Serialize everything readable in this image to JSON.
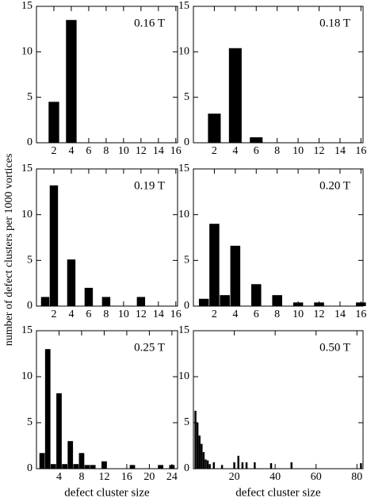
{
  "ylabel": "number of defect clusters per 1000 vortices",
  "chart_data": [
    {
      "type": "bar",
      "title": "0.16 T",
      "x": [
        2,
        4
      ],
      "values": [
        4.5,
        13.5
      ],
      "color": "#000000",
      "xlim": [
        0,
        16.2
      ],
      "xticks": [
        2,
        4,
        6,
        8,
        10,
        12,
        14,
        16
      ],
      "ylim": [
        0,
        15
      ],
      "yticks": [
        0,
        5,
        10,
        15
      ]
    },
    {
      "type": "bar",
      "title": "0.18 T",
      "x": [
        2,
        4,
        6
      ],
      "values": [
        3.2,
        10.4,
        0.6
      ],
      "color": "#000000",
      "xlim": [
        0,
        16.2
      ],
      "xticks": [
        2,
        4,
        6,
        8,
        10,
        12,
        14,
        16
      ],
      "ylim": [
        0,
        15
      ],
      "yticks": [
        0,
        5,
        10,
        15
      ]
    },
    {
      "type": "bar",
      "title": "0.19 T",
      "x": [
        1,
        2,
        4,
        6,
        8,
        12
      ],
      "values": [
        1,
        13.2,
        5.1,
        2,
        1,
        1
      ],
      "color": "#000000",
      "xlim": [
        0,
        16.2
      ],
      "xticks": [
        2,
        4,
        6,
        8,
        10,
        12,
        14,
        16
      ],
      "ylim": [
        0,
        15
      ],
      "yticks": [
        0,
        5,
        10,
        15
      ]
    },
    {
      "type": "bar",
      "title": "0.20 T",
      "x": [
        1,
        2,
        3,
        4,
        6,
        8,
        10,
        12,
        16
      ],
      "values": [
        0.8,
        9,
        1.2,
        6.6,
        2.4,
        1.2,
        0.4,
        0.4,
        0.4
      ],
      "color": "#000000",
      "xlim": [
        0,
        16.2
      ],
      "xticks": [
        2,
        4,
        6,
        8,
        10,
        12,
        14,
        16
      ],
      "ylim": [
        0,
        15
      ],
      "yticks": [
        0,
        5,
        10,
        15
      ]
    },
    {
      "type": "bar",
      "title": "0.25 T",
      "x": [
        1,
        2,
        3,
        4,
        5,
        6,
        7,
        8,
        9,
        10,
        12,
        17,
        22,
        24
      ],
      "values": [
        1.7,
        13,
        0.5,
        8.2,
        0.5,
        3,
        0.5,
        1.7,
        0.4,
        0.4,
        0.8,
        0.4,
        0.4,
        0.4
      ],
      "color": "#000000",
      "xlim": [
        0,
        25
      ],
      "xticks": [
        4,
        8,
        12,
        16,
        20,
        24
      ],
      "ylim": [
        0,
        15
      ],
      "yticks": [
        0,
        5,
        10,
        15
      ],
      "xlabel": "defect cluster size"
    },
    {
      "type": "bar",
      "title": "0.50 T",
      "x": [
        1,
        2,
        3,
        4,
        5,
        6,
        7,
        8,
        10,
        14,
        20,
        22,
        24,
        26,
        30,
        38,
        48,
        82
      ],
      "values": [
        6.3,
        5,
        3.6,
        2.7,
        1.8,
        1,
        0.9,
        0.5,
        0.7,
        0.4,
        0.7,
        1.4,
        0.7,
        0.7,
        0.7,
        0.6,
        0.7,
        0.6
      ],
      "color": "#000000",
      "xlim": [
        0,
        83
      ],
      "xticks": [
        20,
        40,
        60,
        80
      ],
      "ylim": [
        0,
        15
      ],
      "yticks": [
        0,
        5,
        10,
        15
      ],
      "xlabel": "defect cluster size"
    }
  ]
}
